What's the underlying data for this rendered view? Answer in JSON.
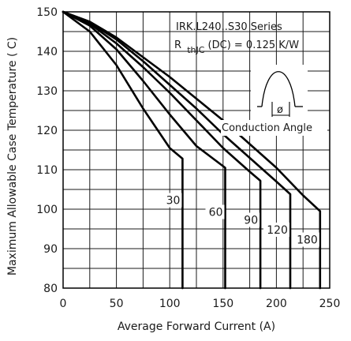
{
  "chart_data": {
    "type": "line",
    "title": "IRK.L240..S30 Series",
    "annotation_rth_prefix": "R",
    "annotation_rth_sub": "thJC",
    "annotation_rth_suffix": "(DC) = 0.125 K/W",
    "inset_label": "Conduction Angle",
    "inset_symbol": "ø",
    "xlabel": "Average Forward Current (A)",
    "ylabel": "Maximum Allowable Case Temperature ( C)",
    "xlim": [
      0,
      250
    ],
    "ylim": [
      80,
      150
    ],
    "x_ticks": [
      "0",
      "50",
      "100",
      "150",
      "200",
      "250"
    ],
    "y_ticks": [
      "80",
      "90",
      "100",
      "110",
      "120",
      "130",
      "140",
      "150"
    ],
    "grid": true,
    "series": [
      {
        "name": "30",
        "points": [
          [
            0,
            150
          ],
          [
            25,
            145
          ],
          [
            50,
            136.5
          ],
          [
            75,
            125.5
          ],
          [
            100,
            115.5
          ],
          [
            112,
            112.8
          ],
          [
            112,
            80
          ]
        ]
      },
      {
        "name": "60",
        "points": [
          [
            0,
            150
          ],
          [
            25,
            146.5
          ],
          [
            50,
            140.5
          ],
          [
            75,
            132.5
          ],
          [
            100,
            124
          ],
          [
            125,
            116
          ],
          [
            152,
            110.5
          ],
          [
            152,
            80
          ]
        ]
      },
      {
        "name": "90",
        "points": [
          [
            0,
            150
          ],
          [
            25,
            147
          ],
          [
            50,
            142
          ],
          [
            75,
            136
          ],
          [
            100,
            129.5
          ],
          [
            125,
            122.5
          ],
          [
            150,
            115.5
          ],
          [
            175,
            109.5
          ],
          [
            185,
            107.2
          ],
          [
            185,
            80
          ]
        ]
      },
      {
        "name": "120",
        "points": [
          [
            0,
            150
          ],
          [
            25,
            147.3
          ],
          [
            50,
            143
          ],
          [
            75,
            137.5
          ],
          [
            100,
            131.5
          ],
          [
            125,
            125.5
          ],
          [
            150,
            119
          ],
          [
            175,
            113
          ],
          [
            200,
            107
          ],
          [
            213,
            103.8
          ],
          [
            213,
            80
          ]
        ]
      },
      {
        "name": "180",
        "points": [
          [
            0,
            150
          ],
          [
            25,
            147.5
          ],
          [
            50,
            143.5
          ],
          [
            75,
            138.5
          ],
          [
            100,
            133.5
          ],
          [
            125,
            128
          ],
          [
            150,
            122.5
          ],
          [
            175,
            116.5
          ],
          [
            200,
            110.5
          ],
          [
            225,
            103.5
          ],
          [
            241,
            99.5
          ],
          [
            241,
            80
          ]
        ]
      }
    ]
  }
}
